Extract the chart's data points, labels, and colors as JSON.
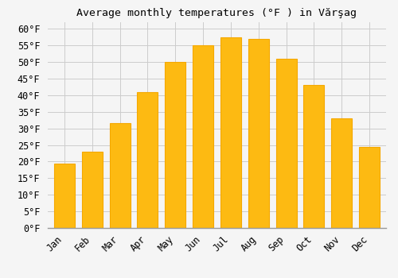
{
  "title": "Average monthly temperatures (°F ) in Vărşag",
  "months": [
    "Jan",
    "Feb",
    "Mar",
    "Apr",
    "May",
    "Jun",
    "Jul",
    "Aug",
    "Sep",
    "Oct",
    "Nov",
    "Dec"
  ],
  "values": [
    19.5,
    23.0,
    31.5,
    41.0,
    50.0,
    55.0,
    57.5,
    57.0,
    51.0,
    43.0,
    33.0,
    24.5
  ],
  "bar_color": "#FDBA12",
  "bar_edge_color": "#F5A800",
  "background_color": "#F5F5F5",
  "grid_color": "#CCCCCC",
  "ylim": [
    0,
    62
  ],
  "ytick_step": 5,
  "title_fontsize": 9.5,
  "tick_fontsize": 8.5
}
